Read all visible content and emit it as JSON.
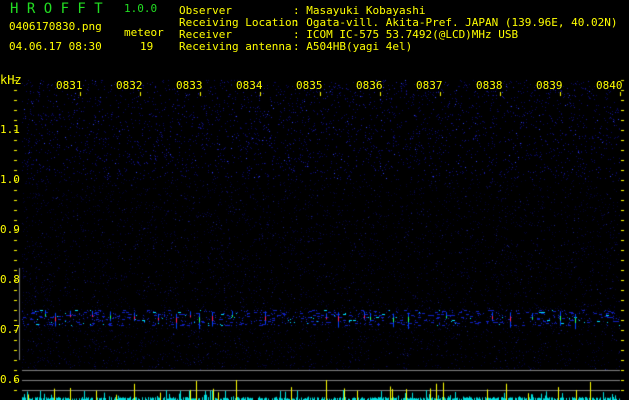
{
  "app": {
    "title": "H R O F F T",
    "version": "1.0.0"
  },
  "file": {
    "name": "0406170830.png",
    "datetime": "04.06.17 08:30"
  },
  "meteor": {
    "label": "meteor",
    "count": "19"
  },
  "info": [
    {
      "label": "Observer",
      "value": ": Masayuki Kobayashi"
    },
    {
      "label": "Receiving Location",
      "value": ": Ogata-vill. Akita-Pref. JAPAN (139.96E, 40.02N)"
    },
    {
      "label": "Receiver",
      "value": ": ICOM IC-575 53.7492(@LCD)MHz USB"
    },
    {
      "label": "Receiving antenna",
      "value": ": A504HB(yagi 4el)"
    }
  ],
  "axis": {
    "yunit": "kHz",
    "yticks": [
      "1.1",
      "1.0",
      "0.9",
      "0.8",
      "0.7",
      "0.6"
    ],
    "xticks": [
      "0831",
      "0832",
      "0833",
      "0834",
      "0835",
      "0836",
      "0837",
      "0838",
      "0839",
      "0840"
    ]
  },
  "colors": {
    "text": "#ffff00",
    "title": "#22dd22",
    "noise": "#0000aa",
    "echo": "#00ffff",
    "meteor_bar": "#ffff00",
    "count_bar": "#00e0e0",
    "gridline": "#808080"
  }
}
